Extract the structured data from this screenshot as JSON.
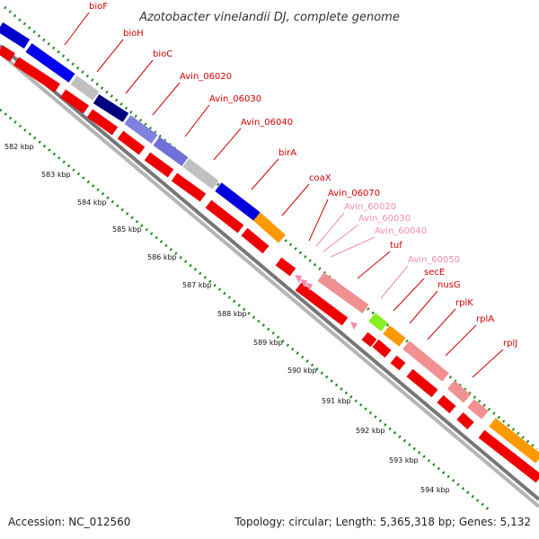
{
  "title": "Azotobacter vinelandii DJ, complete genome",
  "accession": "Accession: NC_012560",
  "topology": "Topology: circular; Length: 5,365,318 bp; Genes: 5,132",
  "colors": {
    "label_red": "#cc0000",
    "label_pink": "#f08cb0",
    "ruler_green": "#1e8c1e",
    "backbone": "#9a9a9a"
  },
  "genes": [
    {
      "name": "bioF",
      "color": "#cc0000"
    },
    {
      "name": "bioH",
      "color": "#cc0000"
    },
    {
      "name": "bioC",
      "color": "#cc0000"
    },
    {
      "name": "Avin_06020",
      "color": "#cc0000"
    },
    {
      "name": "Avin_06030",
      "color": "#cc0000"
    },
    {
      "name": "Avin_06040",
      "color": "#cc0000"
    },
    {
      "name": "birA",
      "color": "#cc0000"
    },
    {
      "name": "coaX",
      "color": "#cc0000"
    },
    {
      "name": "Avin_06070",
      "color": "#cc0000"
    },
    {
      "name": "Avin_60020",
      "color": "#f08cb0"
    },
    {
      "name": "Avin_60030",
      "color": "#f08cb0"
    },
    {
      "name": "Avin_60040",
      "color": "#f08cb0"
    },
    {
      "name": "tuf",
      "color": "#cc0000"
    },
    {
      "name": "Avin_60050",
      "color": "#f08cb0"
    },
    {
      "name": "secE",
      "color": "#cc0000"
    },
    {
      "name": "nusG",
      "color": "#cc0000"
    },
    {
      "name": "rplK",
      "color": "#cc0000"
    },
    {
      "name": "rplA",
      "color": "#cc0000"
    },
    {
      "name": "rplJ",
      "color": "#cc0000"
    }
  ],
  "ticks": [
    "582 kbp",
    "583 kbp",
    "584 kbp",
    "585 kbp",
    "586 kbp",
    "587 kbp",
    "588 kbp",
    "589 kbp",
    "590 kbp",
    "591 kbp",
    "592 kbp",
    "593 kbp",
    "594 kbp"
  ]
}
